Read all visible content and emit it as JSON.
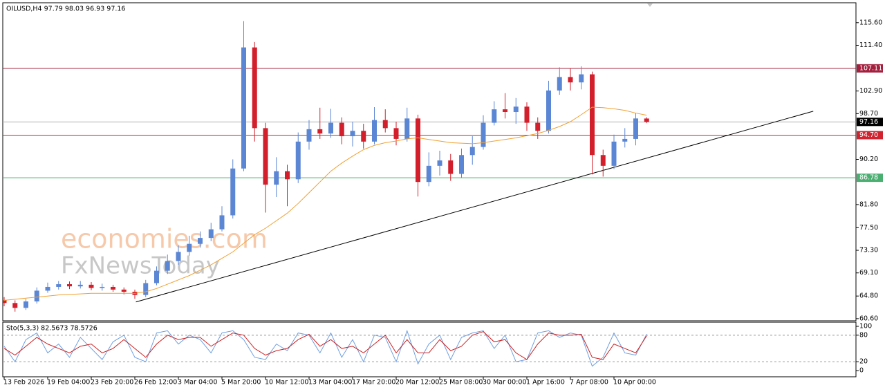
{
  "chart_data": [
    {
      "type": "candlestick",
      "title": "OILUSD,H4  97.79 98.03 96.93 97.16",
      "watermark": [
        "economies.com",
        "FxNewsToday"
      ],
      "categories": [
        "13 Feb 2026",
        null,
        null,
        null,
        "19 Feb 04:00",
        null,
        null,
        null,
        "23 Feb 20:00",
        null,
        null,
        null,
        "26 Feb 12:00",
        null,
        null,
        null,
        "3 Mar 04:00",
        null,
        null,
        null,
        "5 Mar 20:00",
        null,
        null,
        null,
        "10 Mar 12:00",
        null,
        null,
        null,
        "13 Mar 04:00",
        null,
        null,
        null,
        "17 Mar 20:00",
        null,
        null,
        null,
        "20 Mar 12:00",
        null,
        null,
        null,
        "25 Mar 08:00",
        null,
        null,
        null,
        "30 Mar 00:00",
        null,
        null,
        null,
        "1 Apr 16:00",
        null,
        null,
        null,
        "7 Apr 08:00",
        null,
        null,
        null,
        "10 Apr 00:00",
        null,
        null,
        null
      ],
      "open": [
        64.0,
        63.5,
        62.6,
        63.8,
        65.8,
        66.5,
        67.0,
        66.6,
        66.9,
        66.3,
        66.5,
        66.0,
        65.6,
        65.0,
        67.2,
        69.5,
        71.3,
        73.0,
        74.5,
        75.6,
        77.2,
        79.8,
        88.5,
        111.0,
        96.0,
        85.5,
        88.0,
        86.5,
        93.5,
        95.8,
        95.0,
        97.0,
        94.5,
        95.5,
        93.5,
        97.5,
        96.0,
        94.0,
        97.8,
        86.0,
        89.0,
        90.0,
        87.5,
        91.0,
        92.5,
        97.0,
        99.5,
        99.0,
        100.0,
        97.0,
        95.5,
        103.0,
        105.5,
        104.5,
        106.0,
        91.0,
        89.0,
        93.5,
        94.0,
        97.79
      ],
      "high": [
        64.6,
        64.0,
        64.3,
        66.4,
        67.3,
        67.6,
        67.5,
        67.6,
        67.4,
        67.1,
        66.9,
        66.4,
        66.0,
        67.8,
        70.3,
        72.5,
        74.2,
        76.0,
        76.8,
        78.4,
        81.5,
        90.2,
        115.9,
        112.0,
        97.0,
        90.6,
        89.2,
        95.2,
        97.5,
        99.8,
        99.6,
        98.0,
        97.2,
        96.8,
        99.9,
        99.5,
        97.2,
        99.8,
        98.5,
        91.5,
        91.8,
        91.2,
        92.2,
        94.5,
        98.4,
        101.0,
        102.5,
        101.6,
        100.8,
        98.0,
        104.8,
        107.3,
        107.1,
        107.5,
        106.5,
        92.0,
        94.8,
        96.0,
        98.8,
        98.03
      ],
      "low": [
        62.9,
        61.9,
        62.2,
        63.4,
        65.4,
        66.0,
        66.1,
        66.2,
        65.9,
        65.8,
        65.6,
        65.1,
        64.3,
        64.6,
        66.8,
        68.9,
        70.6,
        72.3,
        73.8,
        75.0,
        76.8,
        79.2,
        88.0,
        93.5,
        80.3,
        83.2,
        81.5,
        85.8,
        92.0,
        94.0,
        94.2,
        93.0,
        92.6,
        92.2,
        93.0,
        95.2,
        92.8,
        93.5,
        83.3,
        85.2,
        87.2,
        86.2,
        86.8,
        89.2,
        92.0,
        96.5,
        97.8,
        96.8,
        95.5,
        94.0,
        95.0,
        102.2,
        103.0,
        103.2,
        87.4,
        87.0,
        88.4,
        92.4,
        92.8,
        96.93
      ],
      "close": [
        63.5,
        62.6,
        63.8,
        65.8,
        66.5,
        67.0,
        66.6,
        66.9,
        66.3,
        66.5,
        66.0,
        65.6,
        65.0,
        67.2,
        69.5,
        71.3,
        73.0,
        74.5,
        75.6,
        77.2,
        79.8,
        88.5,
        111.0,
        96.0,
        85.5,
        88.0,
        86.5,
        93.5,
        95.8,
        95.0,
        97.0,
        94.5,
        95.5,
        93.5,
        97.5,
        96.0,
        94.0,
        97.8,
        86.0,
        89.0,
        90.0,
        87.5,
        91.0,
        92.5,
        97.0,
        99.5,
        99.0,
        100.0,
        97.0,
        95.5,
        103.0,
        105.5,
        104.5,
        106.0,
        91.0,
        89.0,
        93.5,
        94.0,
        97.8,
        97.16
      ],
      "up_color": "#5b86d4",
      "down_color": "#d21f2b",
      "moving_average": {
        "color": "#f0a030",
        "values": [
          64.0,
          64.2,
          64.4,
          64.6,
          64.8,
          65.0,
          65.1,
          65.2,
          65.3,
          65.3,
          65.3,
          65.3,
          65.3,
          65.6,
          66.2,
          67.0,
          67.8,
          68.6,
          69.6,
          70.6,
          71.8,
          73.0,
          74.6,
          76.2,
          77.4,
          78.8,
          80.2,
          82.0,
          84.0,
          86.0,
          88.0,
          89.5,
          90.8,
          92.0,
          92.8,
          93.3,
          93.6,
          94.0,
          94.2,
          93.9,
          93.6,
          93.3,
          93.2,
          93.1,
          93.3,
          93.6,
          93.9,
          94.2,
          94.6,
          95.0,
          95.6,
          96.3,
          97.2,
          98.5,
          99.9,
          99.8,
          99.6,
          99.3,
          98.8,
          98.4
        ]
      },
      "levels": [
        {
          "value": 107.11,
          "color": "#a3203e"
        },
        {
          "value": 94.7,
          "label": "94.70",
          "color": "#d0222f"
        },
        {
          "value": 86.78,
          "color": "#4caf72"
        },
        {
          "value": 97.16,
          "color": "#b0b0b0",
          "label_color": "#000000"
        }
      ],
      "trendline": {
        "color": "#000000",
        "x": [
          12.1,
          74.3
        ],
        "y": [
          63.7,
          99.15
        ]
      },
      "ylim": [
        60.2,
        119.3
      ],
      "yticks": [
        {
          "value": 115.6,
          "label": "115.60"
        },
        {
          "value": 111.4,
          "label": "111.40"
        },
        {
          "value": 102.9,
          "label": "102.90"
        },
        {
          "value": 98.7,
          "label": "98.70"
        },
        {
          "value": 90.2,
          "label": "90.20"
        },
        {
          "value": 81.8,
          "label": "81.80"
        },
        {
          "value": 77.5,
          "label": "77.50"
        },
        {
          "value": 73.3,
          "label": "73.30"
        },
        {
          "value": 69.1,
          "label": "69.10"
        },
        {
          "value": 64.8,
          "label": "64.80"
        },
        {
          "value": 60.6,
          "label": "60.60"
        }
      ]
    },
    {
      "type": "line",
      "title": "Sto(5,3,3) 82.5673 78.5726",
      "series": [
        {
          "color": "#6f9fe0",
          "values": [
            55,
            20,
            70,
            85,
            40,
            60,
            30,
            75,
            50,
            25,
            65,
            80,
            30,
            20,
            85,
            90,
            60,
            80,
            70,
            40,
            85,
            90,
            70,
            30,
            25,
            60,
            45,
            85,
            80,
            40,
            85,
            30,
            70,
            20,
            80,
            75,
            20,
            90,
            15,
            60,
            80,
            25,
            75,
            85,
            90,
            50,
            80,
            20,
            25,
            85,
            90,
            75,
            85,
            80,
            10,
            30,
            85,
            40,
            35,
            82.5673
          ]
        },
        {
          "color": "#cc2020",
          "values": [
            50,
            35,
            55,
            75,
            60,
            50,
            40,
            55,
            60,
            40,
            50,
            70,
            50,
            30,
            60,
            80,
            70,
            75,
            75,
            55,
            70,
            85,
            80,
            50,
            35,
            45,
            50,
            70,
            82,
            55,
            70,
            50,
            55,
            40,
            60,
            80,
            40,
            70,
            40,
            40,
            70,
            45,
            55,
            80,
            88,
            65,
            70,
            40,
            25,
            60,
            85,
            80,
            80,
            82,
            30,
            25,
            60,
            50,
            40,
            78.5726
          ]
        }
      ],
      "levels": [
        20,
        80
      ],
      "ylim": [
        -14,
        109.4
      ],
      "yticks": [
        0,
        20,
        80,
        100
      ]
    }
  ]
}
